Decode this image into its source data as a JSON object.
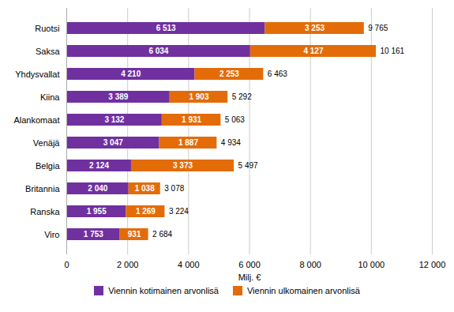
{
  "chart_data": {
    "type": "bar",
    "orientation": "horizontal",
    "stacked": true,
    "data_labels": true,
    "grid": true,
    "legend": "bottom",
    "categories": [
      "Viro",
      "Ranska",
      "Britannia",
      "Belgia",
      "Venäjä",
      "Alankomaat",
      "Kiina",
      "Yhdysvallat",
      "Saksa",
      "Ruotsi"
    ],
    "series": [
      {
        "name": "Viennin kotimainen arvonlisä",
        "color": "#7030a0",
        "values": [
          1753,
          1955,
          2040,
          2124,
          3047,
          3132,
          3389,
          4210,
          6034,
          6513
        ],
        "value_labels": [
          "1 753",
          "1 955",
          "2 040",
          "2 124",
          "3 047",
          "3 132",
          "3 389",
          "4 210",
          "6 034",
          "6 513"
        ]
      },
      {
        "name": "Viennin ulkomainen arvonlisä",
        "color": "#e36c09",
        "values": [
          931,
          1269,
          1038,
          3373,
          1887,
          1931,
          1903,
          2253,
          4127,
          3253
        ],
        "value_labels": [
          "931",
          "1 269",
          "1 038",
          "3 373",
          "1 887",
          "1 931",
          "1 903",
          "2 253",
          "4 127",
          "3 253"
        ]
      }
    ],
    "totals": {
      "values": [
        2684,
        3224,
        3078,
        5497,
        4934,
        5063,
        5292,
        6463,
        10161,
        9765
      ],
      "value_labels": [
        "2 684",
        "3 224",
        "3 078",
        "5 497",
        "4 934",
        "5 063",
        "5 292",
        "6 463",
        "10 161",
        "9 765"
      ]
    },
    "xlabel": "Milj. €",
    "xlim": [
      0,
      12000
    ],
    "xticks": [
      0,
      {
        "value": 2000,
        "label": "2 000"
      },
      {
        "value": 4000,
        "label": "4 000"
      },
      {
        "value": 6000,
        "label": "6 000"
      },
      {
        "value": 8000,
        "label": "8 000"
      },
      {
        "value": 10000,
        "label": "10 000"
      },
      {
        "value": 12000,
        "label": "12 000"
      }
    ]
  }
}
